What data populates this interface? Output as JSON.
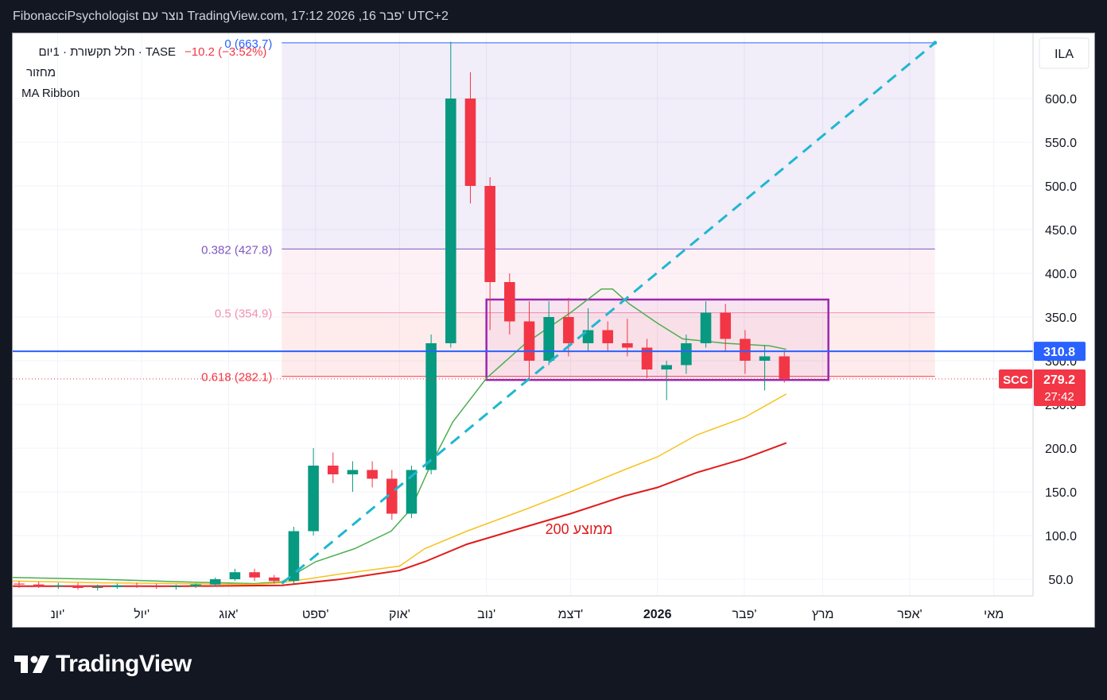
{
  "header": {
    "caption": "FibonacciPsychologist נוצר עם TradingView.com, 17:12 2026 ,16 פבר' UTC+2"
  },
  "legend": {
    "symbol_line": "חלל תקשורת · 1יום · TASE",
    "change": "−10.2 (−3.52%)",
    "volume_label": "מחזור",
    "indicator_label": "MA Ribbon"
  },
  "currency": "ILA",
  "price_badges": {
    "line_price": "310.8",
    "symbol": "SCC",
    "last_price": "279.2",
    "countdown": "27:42"
  },
  "annotations": {
    "ma200_label": "ממוצע 200"
  },
  "brand": {
    "name": "TradingView"
  },
  "colors": {
    "up": "#089981",
    "down": "#f23645",
    "ma_fast": "#4caf50",
    "ma_mid": "#f7c21d",
    "ma_slow": "#e01b1b",
    "trendline": "#1fb7d1",
    "hline": "#2962ff",
    "rect": "#9c27b0",
    "fib0": "#2962ff",
    "fib382": "#7e57c2",
    "fib5": "#f48fb1",
    "fib618": "#f23645"
  },
  "chart_data": {
    "type": "candlestick",
    "timeframe": "1D",
    "y_range": [
      25,
      690
    ],
    "y_ticks": [
      50,
      100,
      150,
      200,
      250,
      300,
      350,
      400,
      450,
      500,
      550,
      600
    ],
    "x_ticks": [
      {
        "label": "יונ'",
        "date": "2025-06-01",
        "bold": false
      },
      {
        "label": "יול'",
        "date": "2025-07-01",
        "bold": false
      },
      {
        "label": "אוג'",
        "date": "2025-08-01",
        "bold": false
      },
      {
        "label": "ספט'",
        "date": "2025-09-01",
        "bold": false
      },
      {
        "label": "אוק'",
        "date": "2025-10-01",
        "bold": false
      },
      {
        "label": "נוב'",
        "date": "2025-11-01",
        "bold": false
      },
      {
        "label": "דצמ'",
        "date": "2025-12-01",
        "bold": false
      },
      {
        "label": "2026",
        "date": "2026-01-01",
        "bold": true
      },
      {
        "label": "פבר'",
        "date": "2026-02-01",
        "bold": false
      },
      {
        "label": "מרץ",
        "date": "2026-03-01",
        "bold": false
      },
      {
        "label": "אפר'",
        "date": "2026-04-01",
        "bold": false
      },
      {
        "label": "מאי",
        "date": "2026-05-01",
        "bold": false
      }
    ],
    "x_extent": [
      "2025-05-16",
      "2026-05-15"
    ],
    "fibonacci": {
      "from": "2025-08-20",
      "to": "2026-04-10",
      "levels": [
        {
          "ratio": "0",
          "price": 663.7,
          "label": "0 (663.7)"
        },
        {
          "ratio": "0.382",
          "price": 427.8,
          "label": "0.382 (427.8)"
        },
        {
          "ratio": "0.5",
          "price": 354.9,
          "label": "0.5 (354.9)"
        },
        {
          "ratio": "0.618",
          "price": 282.1,
          "label": "0.618 (282.1)"
        }
      ]
    },
    "horizontal_line": 310.8,
    "last_price": 279.2,
    "rectangle": {
      "from": "2025-11-01",
      "to": "2026-03-03",
      "top": 370,
      "bottom": 278
    },
    "trendline": {
      "from": {
        "date": "2025-08-20",
        "price": 45
      },
      "to": {
        "date": "2026-04-10",
        "price": 663.7
      }
    },
    "ma_series": [
      {
        "name": "MA fast",
        "color": "#4caf50",
        "points": [
          [
            "2025-05-16",
            52
          ],
          [
            "2025-06-15",
            50
          ],
          [
            "2025-07-15",
            47
          ],
          [
            "2025-08-10",
            45
          ],
          [
            "2025-08-20",
            47
          ],
          [
            "2025-09-01",
            70
          ],
          [
            "2025-09-15",
            85
          ],
          [
            "2025-09-28",
            105
          ],
          [
            "2025-10-05",
            130
          ],
          [
            "2025-10-12",
            180
          ],
          [
            "2025-10-20",
            230
          ],
          [
            "2025-11-01",
            280
          ],
          [
            "2025-11-15",
            320
          ],
          [
            "2025-12-01",
            355
          ],
          [
            "2025-12-12",
            382
          ],
          [
            "2025-12-16",
            382
          ],
          [
            "2025-12-22",
            365
          ],
          [
            "2026-01-01",
            343
          ],
          [
            "2026-01-10",
            325
          ],
          [
            "2026-01-25",
            320
          ],
          [
            "2026-02-10",
            317
          ],
          [
            "2026-02-16",
            313
          ]
        ]
      },
      {
        "name": "MA mid",
        "color": "#f7c21d",
        "points": [
          [
            "2025-05-16",
            48
          ],
          [
            "2025-06-15",
            46
          ],
          [
            "2025-07-15",
            45
          ],
          [
            "2025-08-10",
            44
          ],
          [
            "2025-08-20",
            46
          ],
          [
            "2025-09-10",
            56
          ],
          [
            "2025-10-01",
            65
          ],
          [
            "2025-10-10",
            85
          ],
          [
            "2025-10-25",
            105
          ],
          [
            "2025-11-15",
            130
          ],
          [
            "2025-12-01",
            150
          ],
          [
            "2025-12-20",
            175
          ],
          [
            "2026-01-01",
            190
          ],
          [
            "2026-01-15",
            215
          ],
          [
            "2026-02-01",
            235
          ],
          [
            "2026-02-16",
            262
          ]
        ]
      },
      {
        "name": "MA 200",
        "color": "#e01b1b",
        "points": [
          [
            "2025-05-16",
            42
          ],
          [
            "2025-06-15",
            42
          ],
          [
            "2025-07-15",
            42
          ],
          [
            "2025-08-20",
            43
          ],
          [
            "2025-09-10",
            50
          ],
          [
            "2025-10-01",
            60
          ],
          [
            "2025-10-10",
            70
          ],
          [
            "2025-10-25",
            90
          ],
          [
            "2025-11-15",
            110
          ],
          [
            "2025-12-01",
            125
          ],
          [
            "2025-12-20",
            145
          ],
          [
            "2026-01-01",
            155
          ],
          [
            "2026-01-15",
            172
          ],
          [
            "2026-02-01",
            188
          ],
          [
            "2026-02-16",
            206
          ]
        ]
      }
    ],
    "candles_weekly_approx": [
      {
        "date": "2025-05-16",
        "o": 45,
        "h": 48,
        "l": 40,
        "c": 44
      },
      {
        "date": "2025-05-23",
        "o": 44,
        "h": 47,
        "l": 40,
        "c": 42
      },
      {
        "date": "2025-05-30",
        "o": 42,
        "h": 46,
        "l": 39,
        "c": 43
      },
      {
        "date": "2025-06-06",
        "o": 43,
        "h": 46,
        "l": 38,
        "c": 40
      },
      {
        "date": "2025-06-13",
        "o": 40,
        "h": 44,
        "l": 37,
        "c": 41
      },
      {
        "date": "2025-06-20",
        "o": 41,
        "h": 45,
        "l": 39,
        "c": 43
      },
      {
        "date": "2025-06-27",
        "o": 43,
        "h": 46,
        "l": 40,
        "c": 42
      },
      {
        "date": "2025-07-04",
        "o": 42,
        "h": 45,
        "l": 39,
        "c": 41
      },
      {
        "date": "2025-07-11",
        "o": 41,
        "h": 44,
        "l": 38,
        "c": 42
      },
      {
        "date": "2025-07-18",
        "o": 42,
        "h": 45,
        "l": 40,
        "c": 44
      },
      {
        "date": "2025-07-25",
        "o": 44,
        "h": 52,
        "l": 42,
        "c": 50
      },
      {
        "date": "2025-08-01",
        "o": 50,
        "h": 62,
        "l": 48,
        "c": 58
      },
      {
        "date": "2025-08-08",
        "o": 58,
        "h": 62,
        "l": 48,
        "c": 52
      },
      {
        "date": "2025-08-15",
        "o": 52,
        "h": 55,
        "l": 45,
        "c": 48
      },
      {
        "date": "2025-08-22",
        "o": 48,
        "h": 110,
        "l": 45,
        "c": 105
      },
      {
        "date": "2025-08-29",
        "o": 105,
        "h": 200,
        "l": 100,
        "c": 180
      },
      {
        "date": "2025-09-05",
        "o": 180,
        "h": 195,
        "l": 160,
        "c": 170
      },
      {
        "date": "2025-09-12",
        "o": 170,
        "h": 185,
        "l": 150,
        "c": 175
      },
      {
        "date": "2025-09-19",
        "o": 175,
        "h": 185,
        "l": 155,
        "c": 165
      },
      {
        "date": "2025-09-26",
        "o": 165,
        "h": 175,
        "l": 118,
        "c": 125
      },
      {
        "date": "2025-10-03",
        "o": 125,
        "h": 180,
        "l": 120,
        "c": 175
      },
      {
        "date": "2025-10-10",
        "o": 175,
        "h": 330,
        "l": 170,
        "c": 320
      },
      {
        "date": "2025-10-17",
        "o": 320,
        "h": 665,
        "l": 315,
        "c": 600
      },
      {
        "date": "2025-10-24",
        "o": 600,
        "h": 630,
        "l": 480,
        "c": 500
      },
      {
        "date": "2025-10-31",
        "o": 500,
        "h": 510,
        "l": 335,
        "c": 390
      },
      {
        "date": "2025-11-07",
        "o": 390,
        "h": 400,
        "l": 330,
        "c": 345
      },
      {
        "date": "2025-11-14",
        "o": 345,
        "h": 368,
        "l": 280,
        "c": 300
      },
      {
        "date": "2025-11-21",
        "o": 300,
        "h": 368,
        "l": 295,
        "c": 350
      },
      {
        "date": "2025-11-28",
        "o": 350,
        "h": 372,
        "l": 305,
        "c": 320
      },
      {
        "date": "2025-12-05",
        "o": 320,
        "h": 360,
        "l": 310,
        "c": 335
      },
      {
        "date": "2025-12-12",
        "o": 335,
        "h": 345,
        "l": 310,
        "c": 320
      },
      {
        "date": "2025-12-19",
        "o": 320,
        "h": 348,
        "l": 305,
        "c": 315
      },
      {
        "date": "2025-12-26",
        "o": 315,
        "h": 325,
        "l": 280,
        "c": 290
      },
      {
        "date": "2026-01-02",
        "o": 290,
        "h": 300,
        "l": 255,
        "c": 295
      },
      {
        "date": "2026-01-09",
        "o": 295,
        "h": 330,
        "l": 285,
        "c": 320
      },
      {
        "date": "2026-01-16",
        "o": 320,
        "h": 368,
        "l": 315,
        "c": 355
      },
      {
        "date": "2026-01-23",
        "o": 355,
        "h": 365,
        "l": 310,
        "c": 325
      },
      {
        "date": "2026-01-30",
        "o": 325,
        "h": 335,
        "l": 285,
        "c": 300
      },
      {
        "date": "2026-02-06",
        "o": 300,
        "h": 318,
        "l": 266,
        "c": 305
      },
      {
        "date": "2026-02-13",
        "o": 305,
        "h": 312,
        "l": 275,
        "c": 279.2
      }
    ]
  }
}
